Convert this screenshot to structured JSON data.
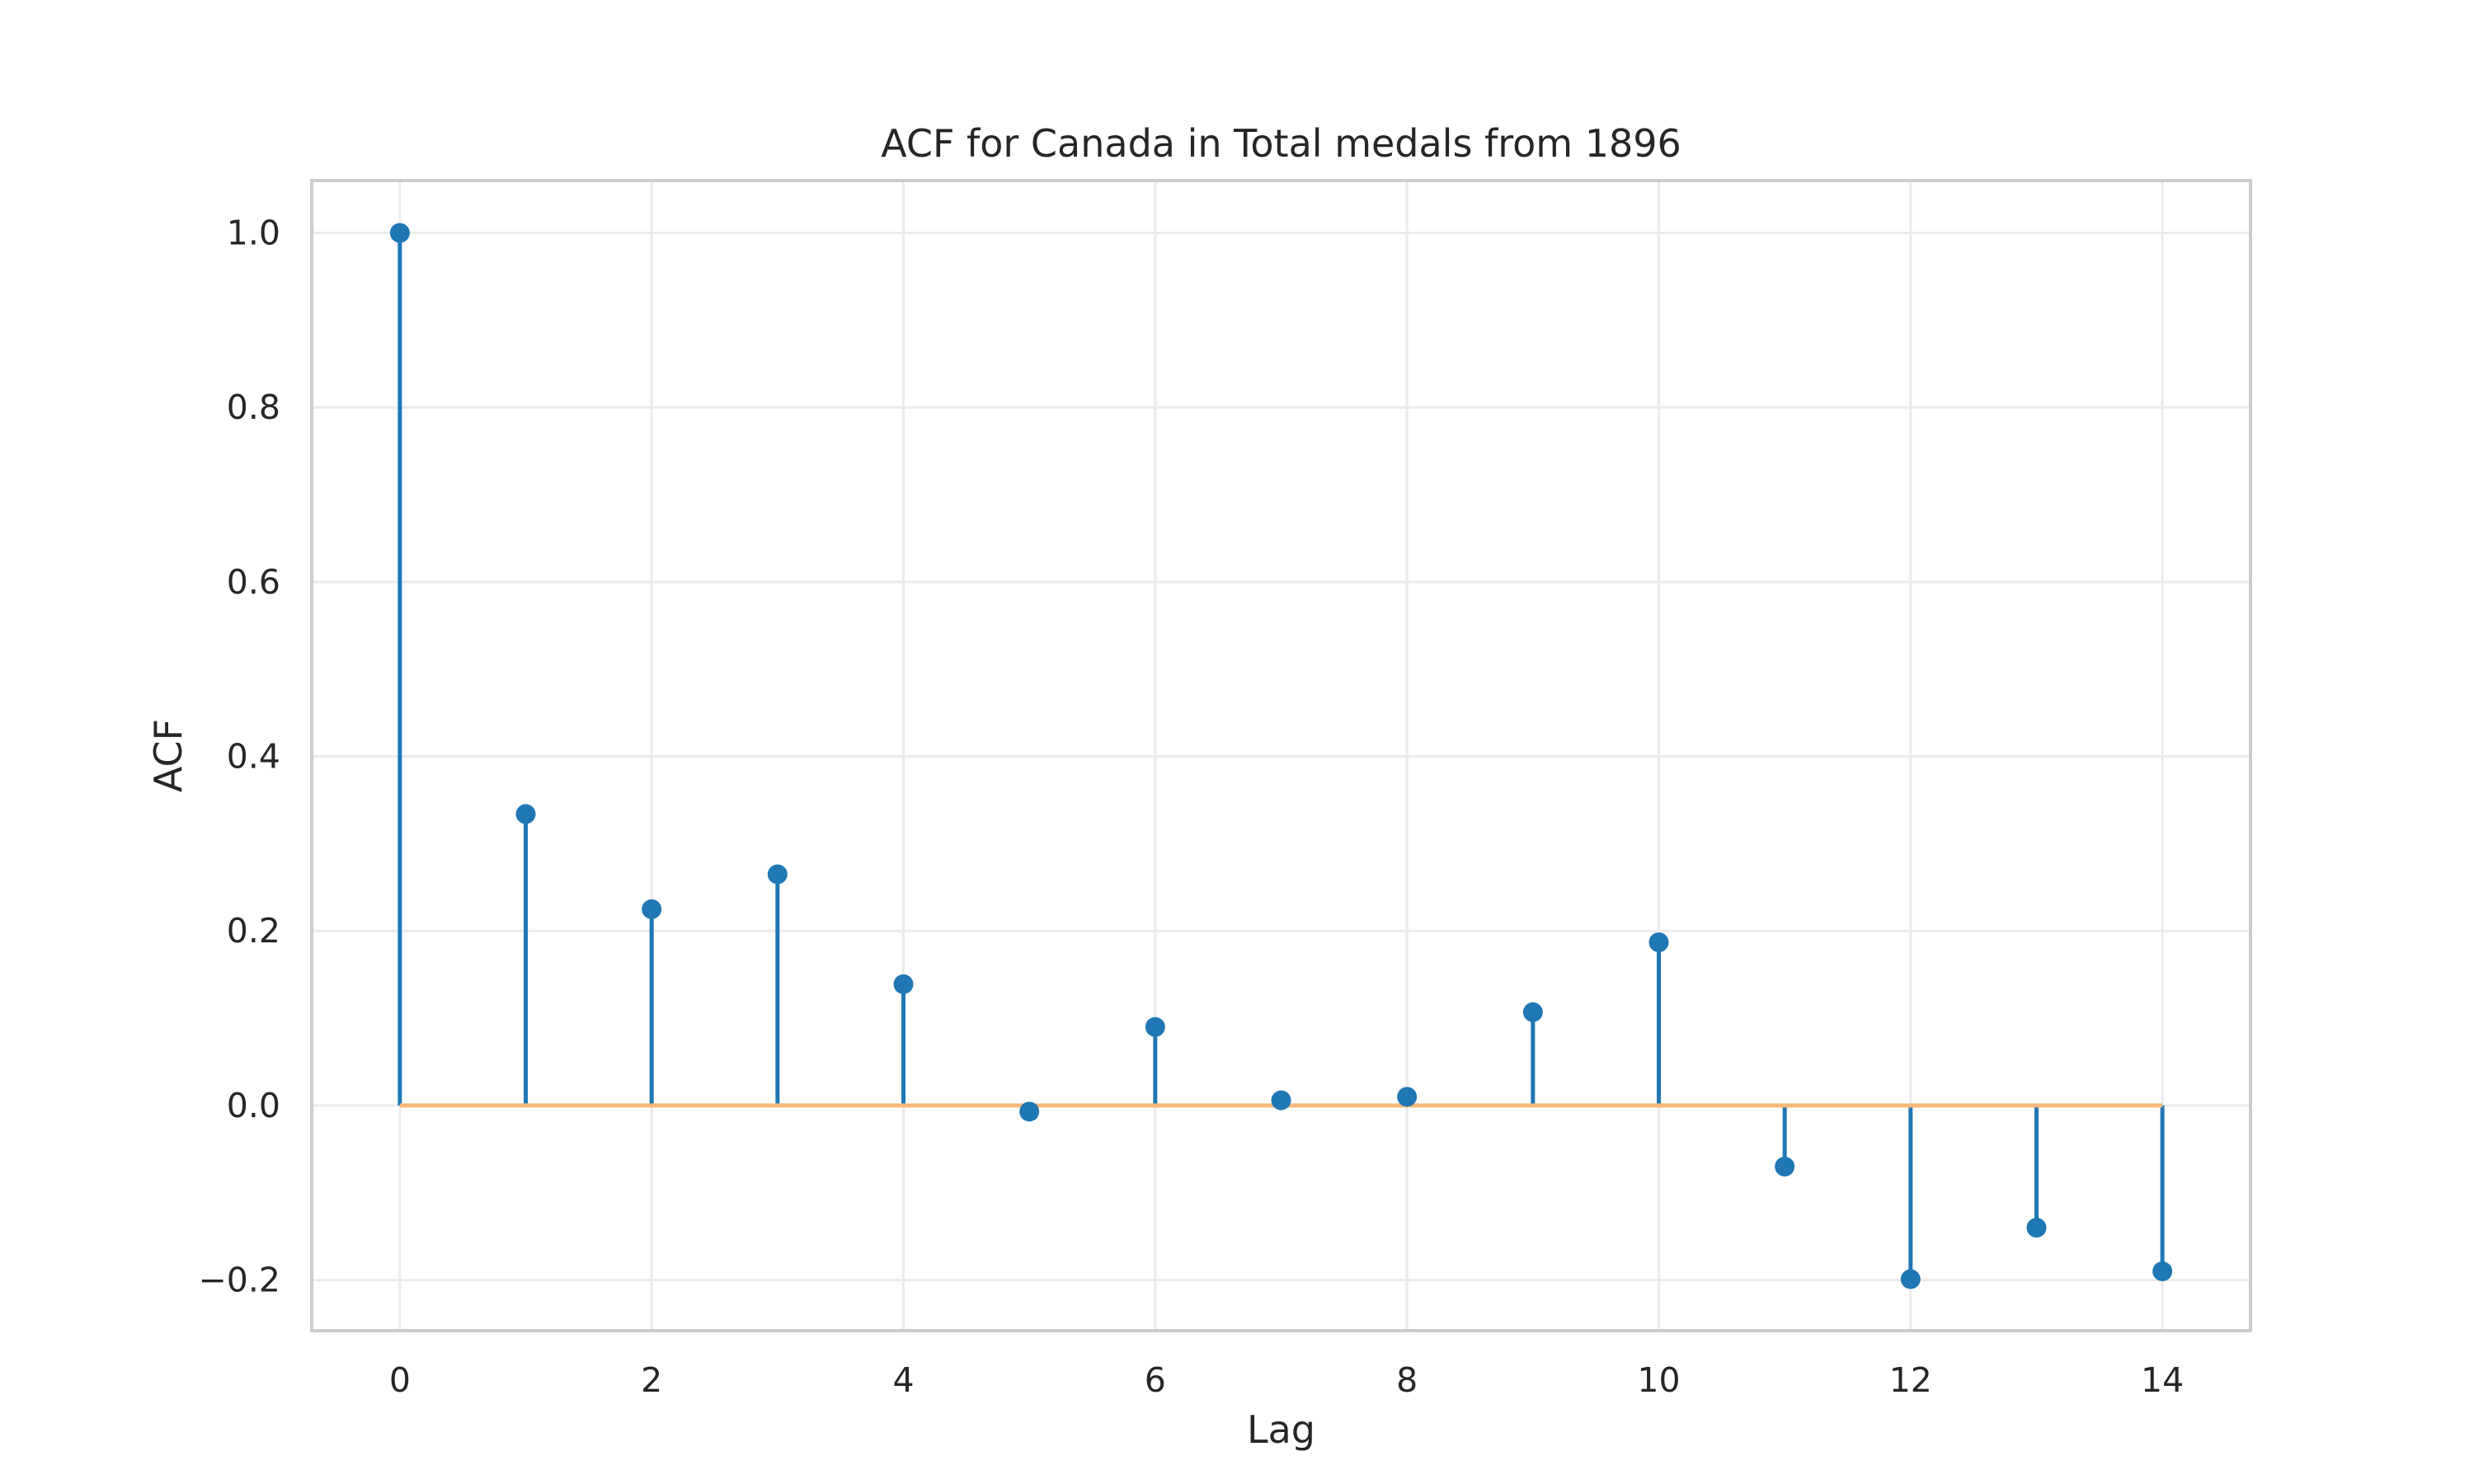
{
  "chart_data": {
    "type": "stem",
    "title": "ACF for Canada in Total medals from 1896",
    "xlabel": "Lag",
    "ylabel": "ACF",
    "x": [
      0,
      1,
      2,
      3,
      4,
      5,
      6,
      7,
      8,
      9,
      10,
      11,
      12,
      13,
      14
    ],
    "values": [
      1.0,
      0.334,
      0.225,
      0.265,
      0.139,
      -0.007,
      0.09,
      0.006,
      0.01,
      0.107,
      0.187,
      -0.07,
      -0.199,
      -0.14,
      -0.19
    ],
    "xlim": [
      -0.7,
      14.7
    ],
    "ylim": [
      -0.258,
      1.06
    ],
    "xticks": [
      0,
      2,
      4,
      6,
      8,
      10,
      12,
      14
    ],
    "xtick_labels": [
      "0",
      "2",
      "4",
      "6",
      "8",
      "10",
      "12",
      "14"
    ],
    "yticks": [
      -0.2,
      0.0,
      0.2,
      0.4,
      0.6,
      0.8,
      1.0
    ],
    "ytick_labels": [
      "−0.2",
      "0.0",
      "0.2",
      "0.4",
      "0.6",
      "0.8",
      "1.0"
    ],
    "baseline": 0.0,
    "grid": true,
    "colors": {
      "stem": "#1f77b4",
      "baseline": "#f5b87a",
      "grid": "#ebebeb",
      "frame": "#cccccc"
    }
  }
}
